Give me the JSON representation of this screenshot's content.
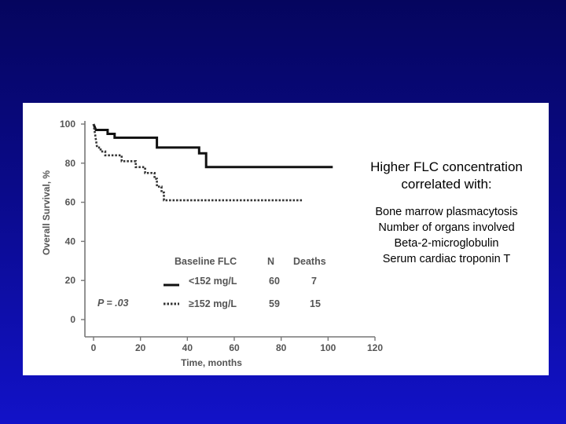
{
  "chart_data": {
    "type": "line",
    "subtype": "kaplan-meier",
    "title": "",
    "xlabel": "Time, months",
    "ylabel": "Overall Survival, %",
    "xlim": [
      0,
      120
    ],
    "ylim": [
      0,
      100
    ],
    "xticks": [
      0,
      20,
      40,
      60,
      80,
      100,
      120
    ],
    "yticks": [
      0,
      20,
      40,
      60,
      80,
      100
    ],
    "grid": false,
    "legend": {
      "headers": [
        "Baseline FLC",
        "N",
        "Deaths"
      ],
      "position": "bottom-right"
    },
    "series": [
      {
        "name": "<152 mg/L",
        "n": "60",
        "deaths": "7",
        "style": "solid",
        "color": "#111111",
        "steps": [
          [
            0,
            100
          ],
          [
            1,
            97
          ],
          [
            6,
            97
          ],
          [
            6,
            95
          ],
          [
            9,
            95
          ],
          [
            9,
            93
          ],
          [
            27,
            93
          ],
          [
            27,
            88
          ],
          [
            45,
            88
          ],
          [
            45,
            85
          ],
          [
            48,
            85
          ],
          [
            48,
            78
          ],
          [
            102,
            78
          ]
        ]
      },
      {
        "name": "≥152 mg/L",
        "n": "59",
        "deaths": "15",
        "style": "dotted",
        "color": "#333333",
        "steps": [
          [
            0,
            100
          ],
          [
            0.5,
            96
          ],
          [
            1,
            92
          ],
          [
            1.5,
            88
          ],
          [
            3,
            88
          ],
          [
            3,
            86
          ],
          [
            5,
            86
          ],
          [
            5,
            84
          ],
          [
            12,
            84
          ],
          [
            12,
            81
          ],
          [
            18,
            81
          ],
          [
            18,
            78
          ],
          [
            22,
            78
          ],
          [
            22,
            75
          ],
          [
            26,
            75
          ],
          [
            26,
            72
          ],
          [
            27,
            72
          ],
          [
            27,
            68
          ],
          [
            29,
            68
          ],
          [
            29,
            65
          ],
          [
            30,
            65
          ],
          [
            30,
            61
          ],
          [
            89,
            61
          ]
        ]
      }
    ],
    "annotations": [
      "P = .03"
    ]
  },
  "notes": {
    "heading": "Higher FLC concentration correlated with:",
    "items": [
      "Bone marrow plasmacytosis",
      "Number of organs involved",
      "Beta-2-microglobulin",
      "Serum cardiac troponin T"
    ]
  }
}
